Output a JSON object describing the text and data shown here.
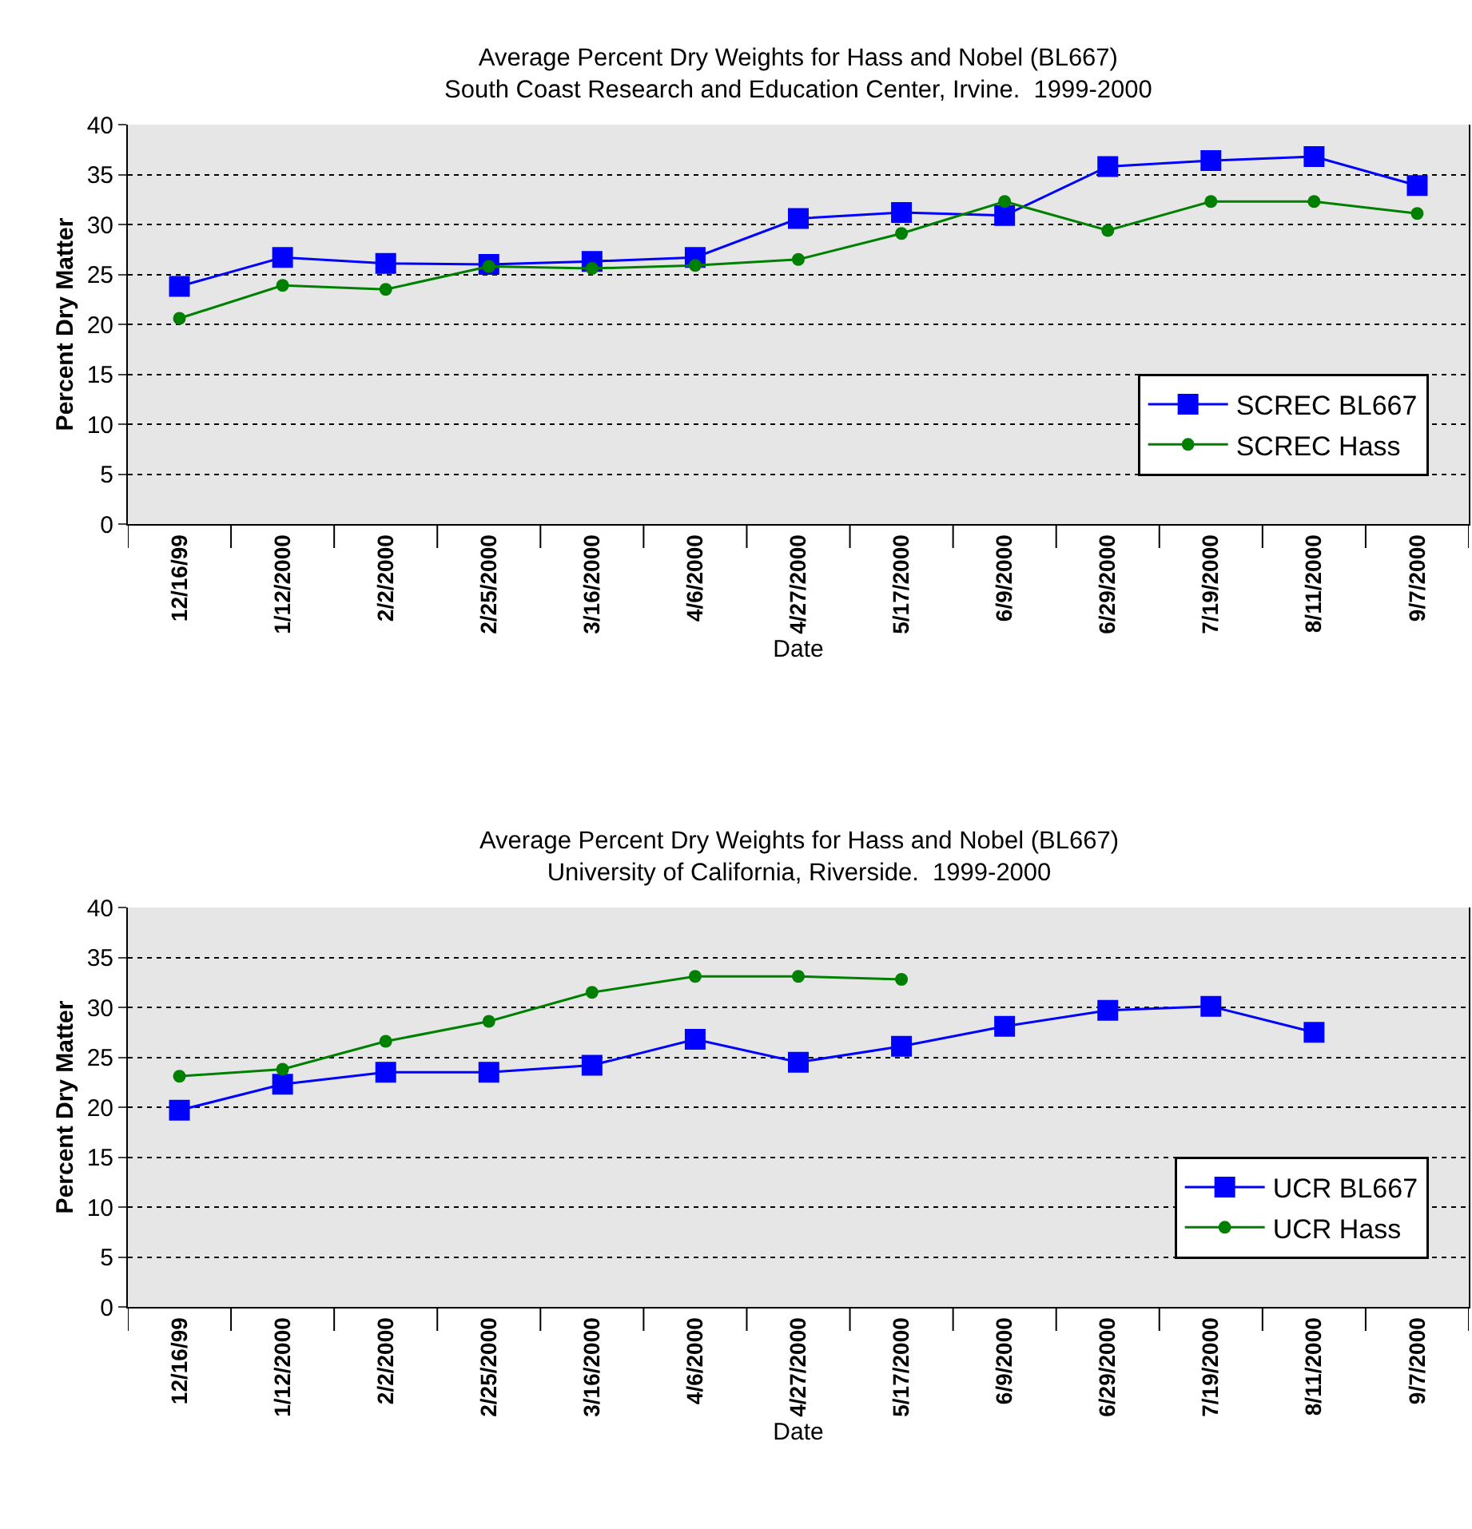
{
  "chart_data": [
    {
      "type": "line",
      "title": "Average Percent Dry Weights for Hass and Nobel (BL667)",
      "subtitle": "South Coast Research and Education Center, Irvine.  1999-2000",
      "xlabel": "Date",
      "ylabel": "Percent Dry Matter",
      "categories": [
        "12/16/99",
        "1/12/2000",
        "2/2/2000",
        "2/25/2000",
        "3/16/2000",
        "4/6/2000",
        "4/27/2000",
        "5/17/2000",
        "6/9/2000",
        "6/29/2000",
        "7/19/2000",
        "8/11/2000",
        "9/7/2000"
      ],
      "series": [
        {
          "name": "SCREC BL667",
          "color": "#0000ff",
          "marker": "square",
          "values": [
            23.8,
            26.7,
            26.1,
            26.0,
            26.3,
            26.7,
            30.6,
            31.2,
            30.9,
            35.8,
            36.4,
            36.8,
            33.9
          ]
        },
        {
          "name": "SCREC Hass",
          "color": "#008000",
          "marker": "circle",
          "values": [
            20.6,
            23.9,
            23.5,
            25.8,
            25.6,
            25.9,
            26.5,
            29.1,
            32.3,
            29.4,
            32.3,
            32.3,
            31.1
          ]
        }
      ],
      "ylim": [
        0,
        40
      ],
      "yticks": [
        0,
        5,
        10,
        15,
        20,
        25,
        30,
        35,
        40
      ],
      "grid": "y",
      "legend": "bottom right",
      "line_style": "solid"
    },
    {
      "type": "line",
      "title": "Average Percent Dry Weights for Hass and Nobel (BL667)",
      "subtitle": "University of California, Riverside.  1999-2000",
      "xlabel": "Date",
      "ylabel": "Percent Dry Matter",
      "categories": [
        "12/16/99",
        "1/12/2000",
        "2/2/2000",
        "2/25/2000",
        "3/16/2000",
        "4/6/2000",
        "4/27/2000",
        "5/17/2000",
        "6/9/2000",
        "6/29/2000",
        "7/19/2000",
        "8/11/2000",
        "9/7/2000"
      ],
      "series": [
        {
          "name": "UCR BL667",
          "color": "#0000ff",
          "marker": "square",
          "values": [
            19.7,
            22.3,
            23.5,
            23.5,
            24.2,
            26.8,
            24.5,
            26.1,
            28.1,
            29.7,
            30.1,
            27.5,
            null
          ]
        },
        {
          "name": "UCR Hass",
          "color": "#008000",
          "marker": "circle",
          "values": [
            23.1,
            23.8,
            26.6,
            28.6,
            31.5,
            33.1,
            33.1,
            32.8,
            null,
            null,
            null,
            null,
            null
          ]
        }
      ],
      "ylim": [
        0,
        40
      ],
      "yticks": [
        0,
        5,
        10,
        15,
        20,
        25,
        30,
        35,
        40
      ],
      "grid": "y",
      "legend": "bottom right",
      "line_style": "solid"
    }
  ]
}
